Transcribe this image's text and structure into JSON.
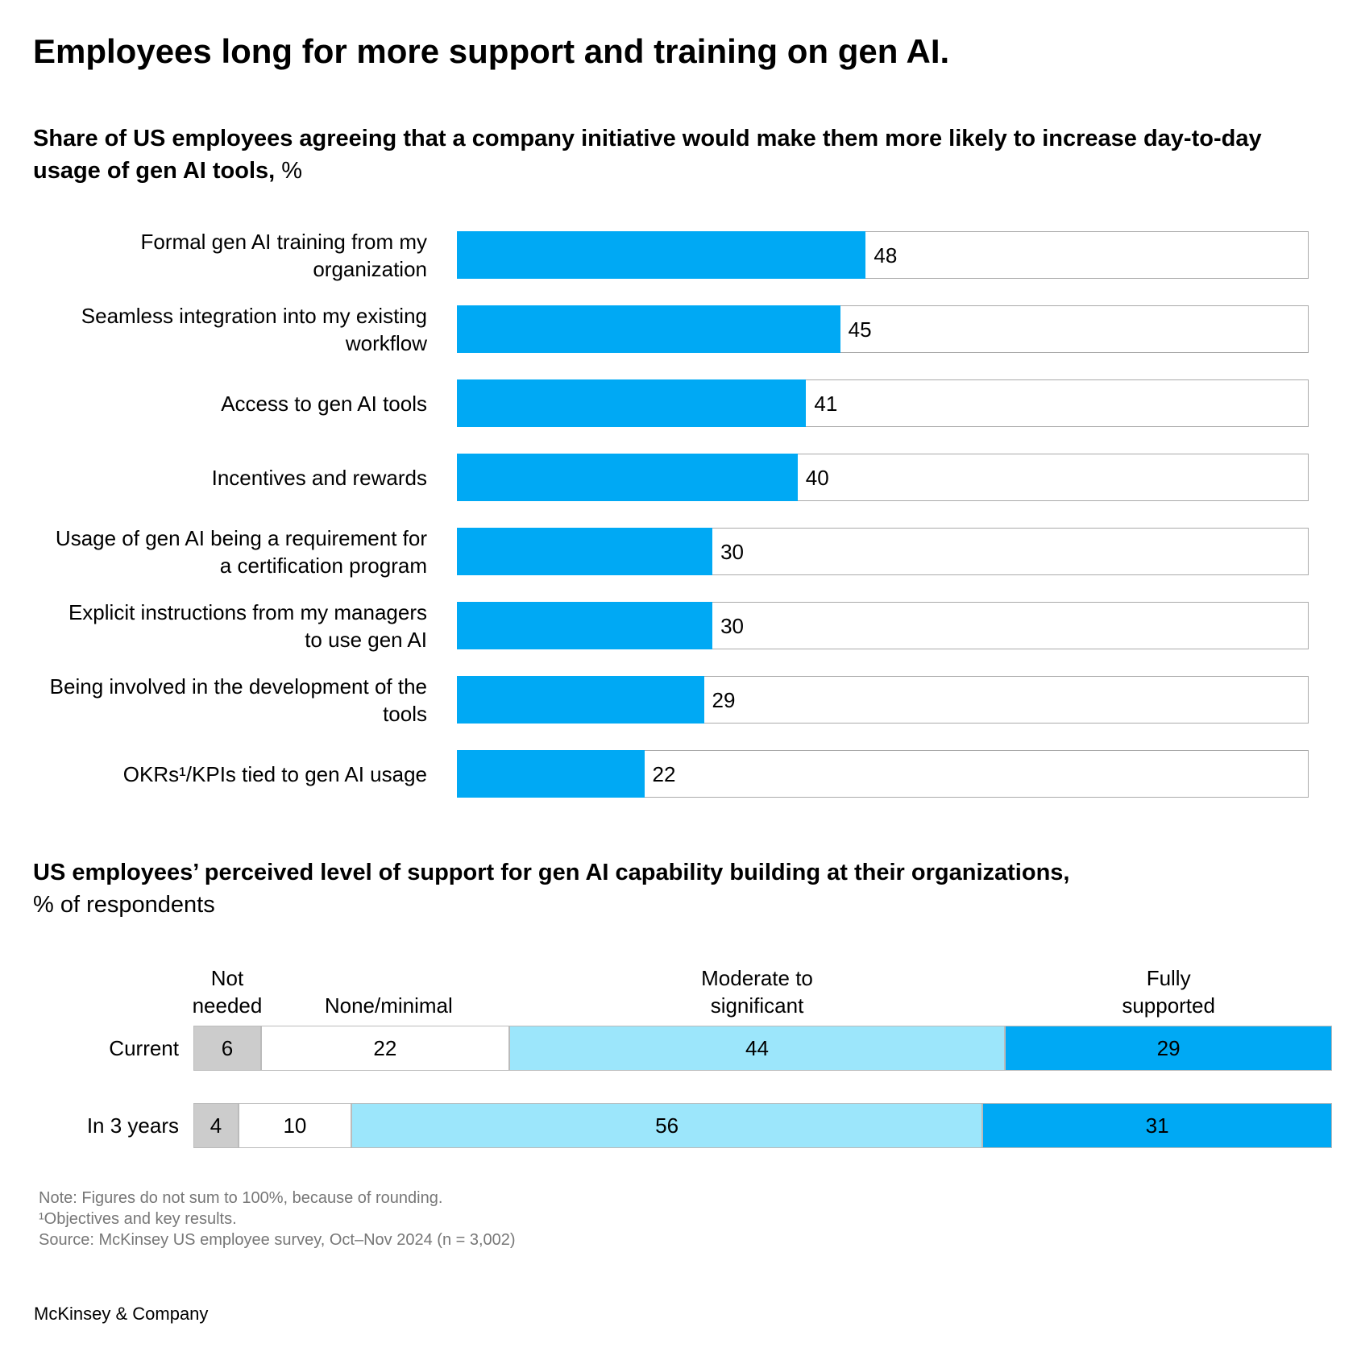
{
  "title": "Employees long for more support and training on gen AI.",
  "chart_data": [
    {
      "type": "bar",
      "subtitle": "Share of US employees agreeing that a company initiative would make them more likely to increase day-to-day usage of gen AI tools,",
      "subtitle_unit": "%",
      "categories": [
        "Formal gen AI training from my organization",
        "Seamless integration into my existing workflow",
        "Access to gen AI tools",
        "Incentives and rewards",
        "Usage of gen AI being a requirement for a certification program",
        "Explicit instructions from my managers to use gen AI",
        "Being involved in the development of the tools",
        "OKRs¹/KPIs tied to gen AI usage"
      ],
      "values": [
        48,
        45,
        41,
        40,
        30,
        30,
        29,
        22
      ],
      "color": "#00a9f4",
      "xlim": [
        0,
        100
      ]
    },
    {
      "type": "stacked_bar",
      "subtitle": "US employees’ perceived level of support for gen AI capability building at their organizations,",
      "subtitle_unit": "% of respondents",
      "categories": [
        "Current",
        "In 3 years"
      ],
      "series": [
        {
          "name": "Not needed",
          "color": "#cccccc",
          "values": [
            6,
            4
          ]
        },
        {
          "name": "None/minimal",
          "color": "#ffffff",
          "values": [
            22,
            10
          ]
        },
        {
          "name": "Moderate to significant",
          "color": "#9ce6fb",
          "values": [
            44,
            56
          ]
        },
        {
          "name": "Fully supported",
          "color": "#00a9f4",
          "values": [
            29,
            31
          ]
        }
      ]
    }
  ],
  "notes": [
    "Note: Figures do not sum to 100%, because of rounding.",
    "¹Objectives and key results.",
    "Source: McKinsey US employee survey, Oct–Nov 2024 (n = 3,002)"
  ],
  "logo": "McKinsey & Company"
}
